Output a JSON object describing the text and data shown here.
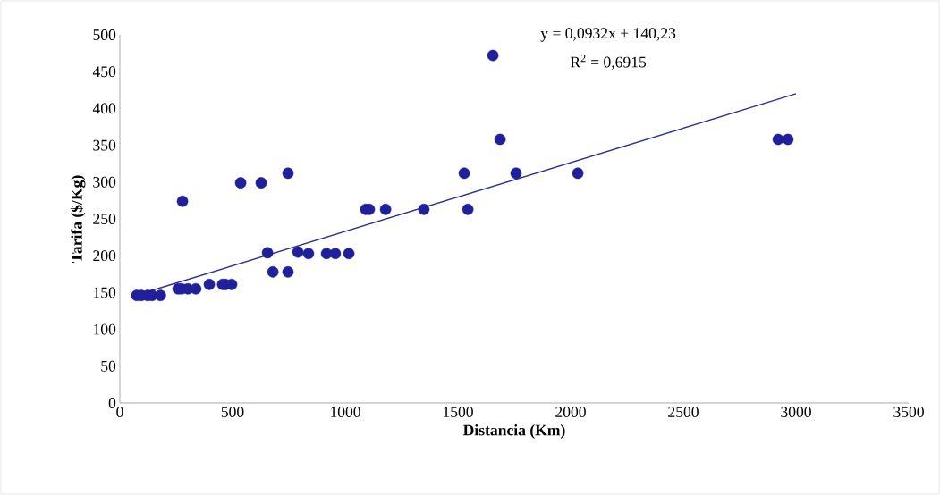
{
  "chart_data": {
    "type": "scatter",
    "xlabel": "Distancia (Km)",
    "ylabel": "Tarifa ($/Kg)",
    "xlim": [
      0,
      3500
    ],
    "ylim": [
      0,
      500
    ],
    "xticks": [
      0,
      500,
      1000,
      1500,
      2000,
      2500,
      3000,
      3500
    ],
    "yticks": [
      0,
      50,
      100,
      150,
      200,
      250,
      300,
      350,
      400,
      450,
      500
    ],
    "grid": false,
    "annotations": [
      "y = 0,0932x + 140,23",
      "R$^{2}$ = 0,6915"
    ],
    "series": [
      {
        "type": "scatter",
        "color": "#20209a",
        "x": [
          75,
          95,
          123,
          143,
          180,
          258,
          274,
          302,
          337,
          397,
          456,
          468,
          496,
          278,
          536,
          627,
          746,
          655,
          679,
          746,
          790,
          837,
          917,
          956,
          1016,
          1091,
          1107,
          1179,
          1349,
          1528,
          1544,
          1655,
          1687,
          1758,
          2032,
          2921,
          2964
        ],
        "values": [
          146,
          146,
          146,
          146,
          146,
          155,
          155,
          155,
          155,
          161,
          161,
          161,
          161,
          274,
          299,
          299,
          312,
          204,
          178,
          178,
          205,
          203,
          203,
          203,
          203,
          263,
          263,
          263,
          263,
          312,
          263,
          472,
          358,
          312,
          312,
          358,
          358
        ]
      },
      {
        "type": "line",
        "color": "#2e3192",
        "x": [
          100,
          3000
        ],
        "values": [
          149,
          420
        ]
      }
    ]
  }
}
